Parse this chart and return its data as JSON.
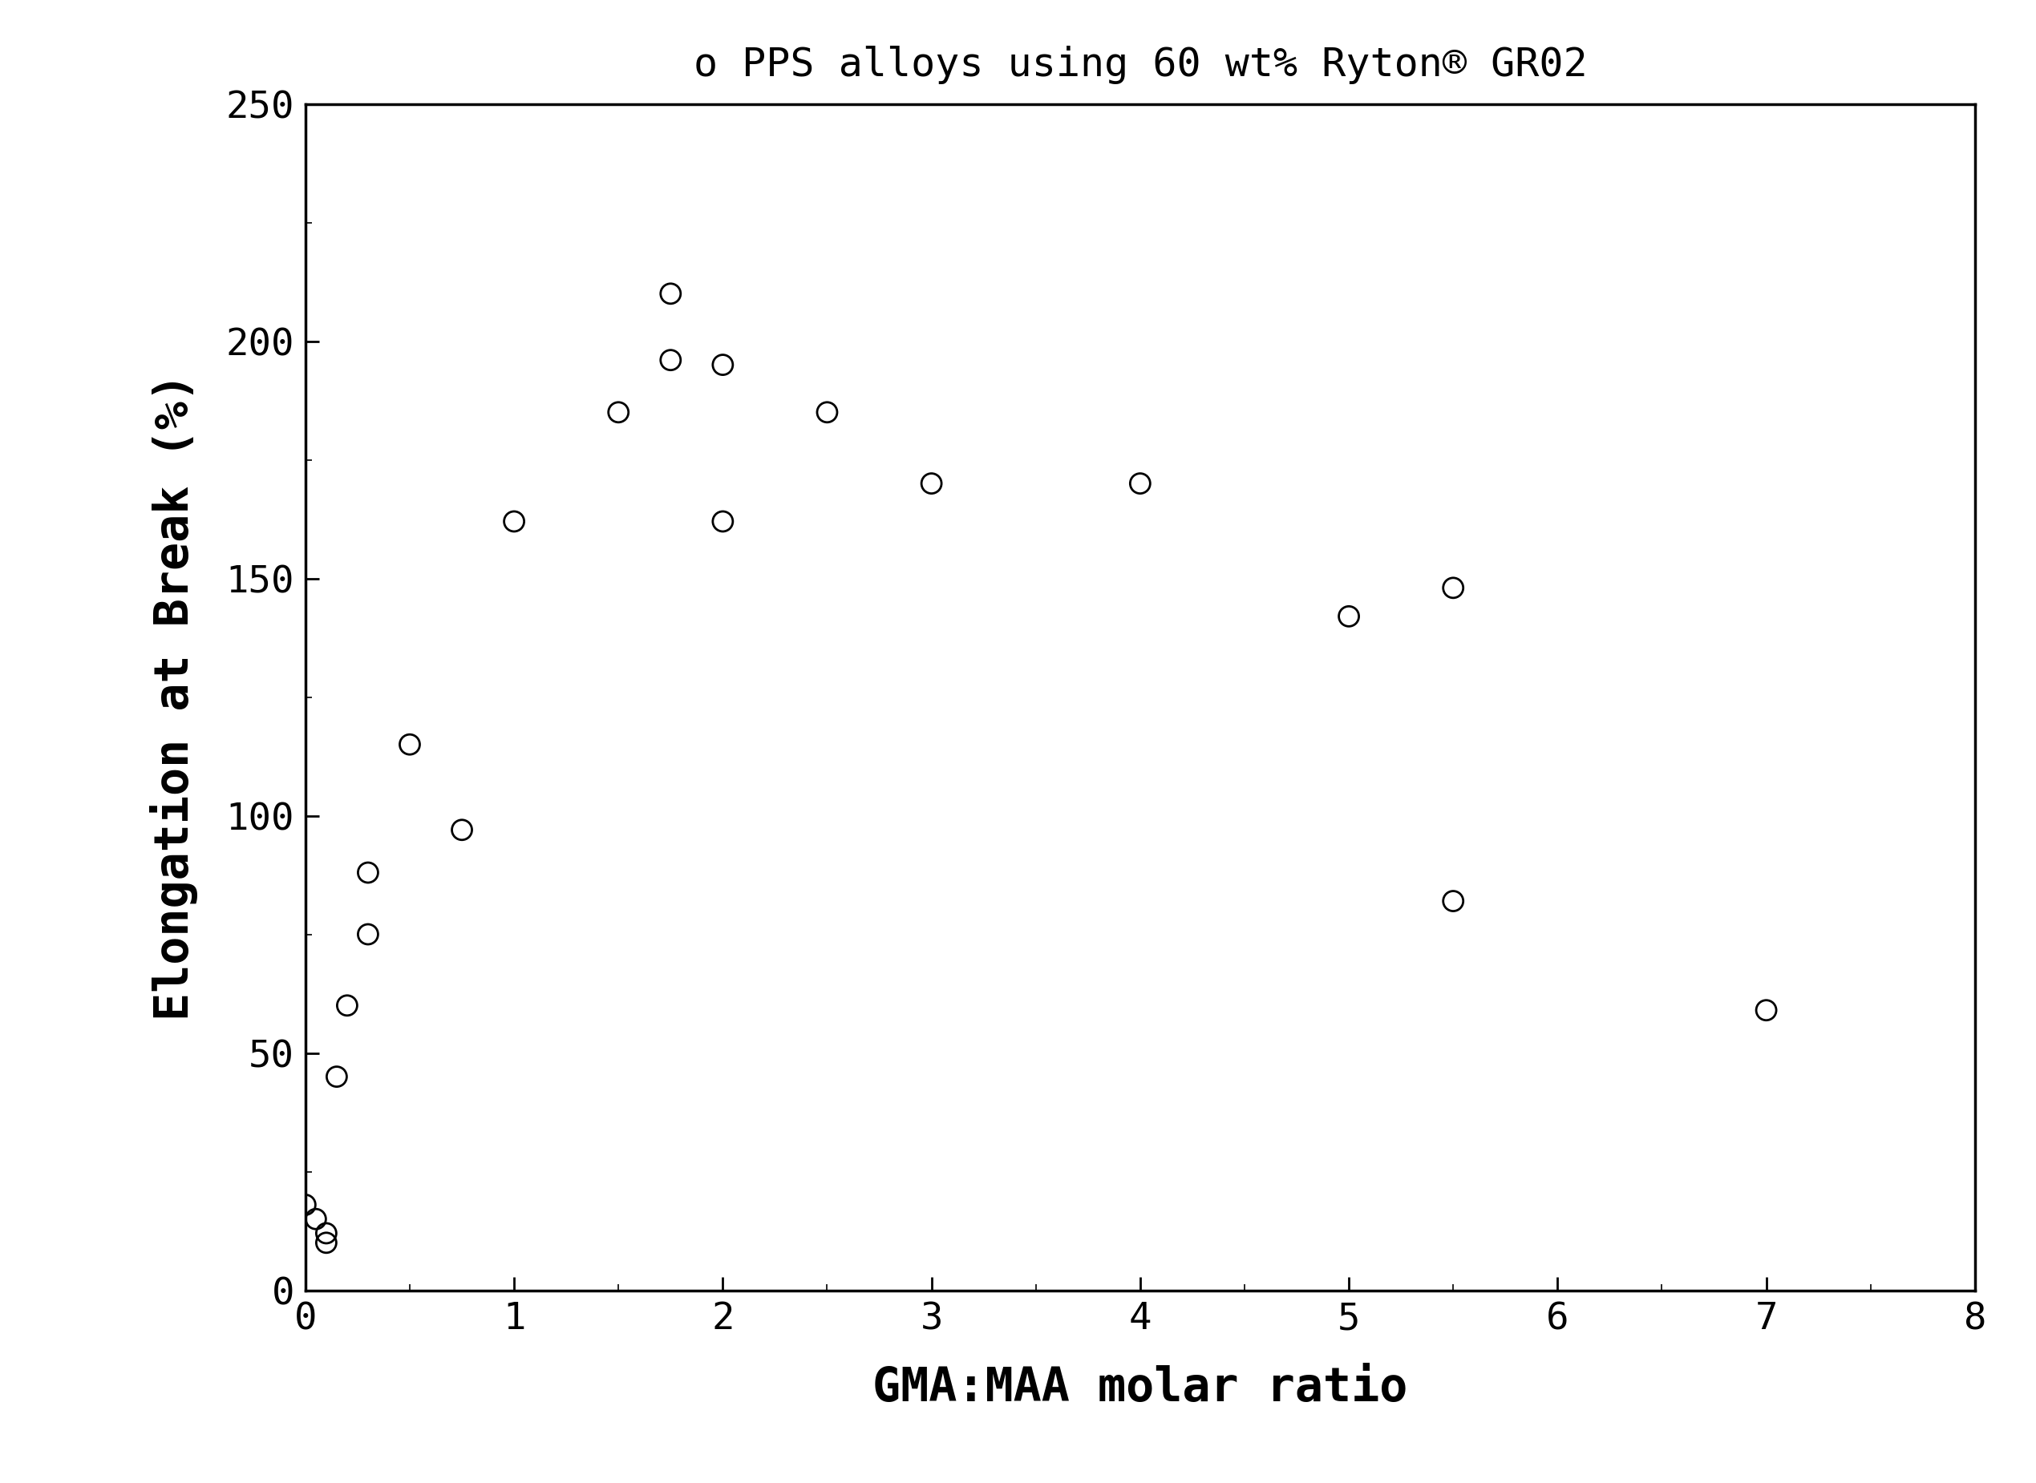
{
  "x_data": [
    0.0,
    0.05,
    0.1,
    0.1,
    0.15,
    0.2,
    0.3,
    0.3,
    0.5,
    0.75,
    1.0,
    1.5,
    1.75,
    1.75,
    2.0,
    2.0,
    2.5,
    3.0,
    4.0,
    5.0,
    5.5,
    5.5,
    7.0
  ],
  "y_data": [
    18,
    15,
    12,
    10,
    45,
    60,
    75,
    88,
    115,
    97,
    162,
    185,
    210,
    196,
    195,
    162,
    185,
    170,
    170,
    142,
    148,
    82,
    59
  ],
  "title": "o PPS alloys using 60 wt% Ryton® GR02",
  "xlabel": "GMA:MAA molar ratio",
  "ylabel": "Elongation at Break (%)",
  "xlim": [
    0,
    8
  ],
  "ylim": [
    0,
    250
  ],
  "xticks": [
    0,
    1,
    2,
    3,
    4,
    5,
    6,
    7,
    8
  ],
  "yticks": [
    0,
    50,
    100,
    150,
    200,
    250
  ],
  "marker": "o",
  "marker_size": 18,
  "marker_color": "none",
  "marker_edge_color": "#000000",
  "marker_edge_width": 2.0,
  "background_color": "#ffffff",
  "title_fontsize": 36,
  "axis_label_fontsize": 42,
  "tick_fontsize": 34
}
